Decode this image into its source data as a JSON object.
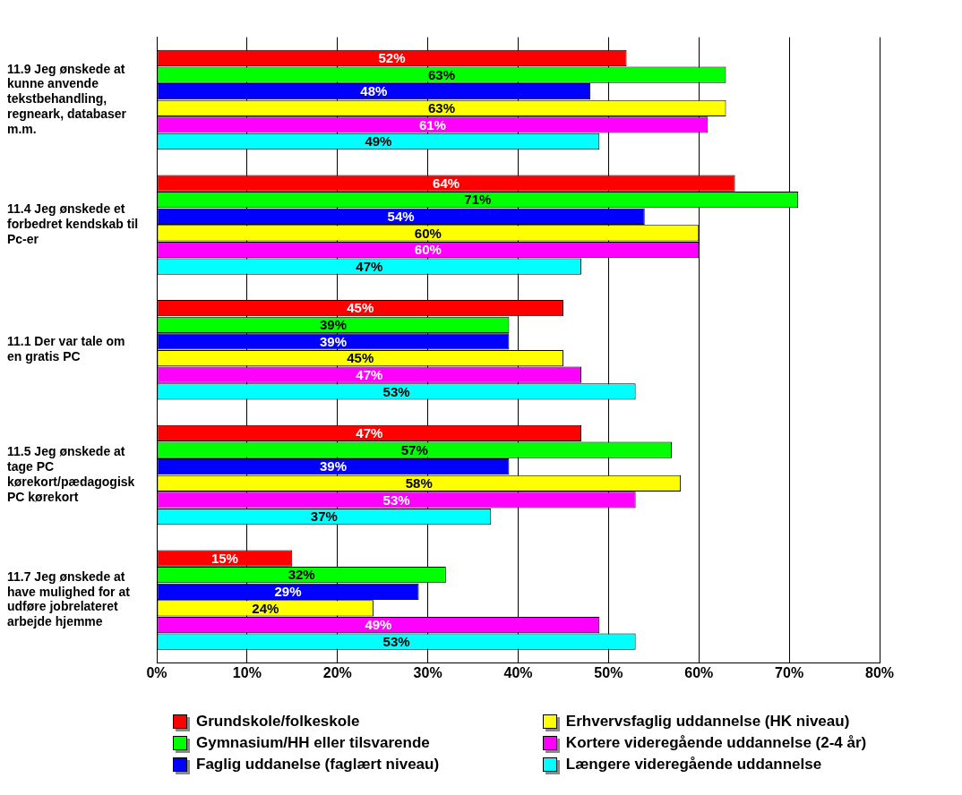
{
  "chart_data": {
    "type": "bar",
    "orientation": "horizontal",
    "categories": [
      "11.9 Jeg ønskede at kunne anvende tekstbehandling, regneark, databaser m.m.",
      "11.4 Jeg ønskede et forbedret kendskab til Pc-er",
      "11.1 Der var tale om en gratis PC",
      "11.5 Jeg ønskede at tage PC kørekort/pædagogisk PC kørekort",
      "11.7 Jeg ønskede at have mulighed for at udføre jobrelateret arbejde hjemme"
    ],
    "series": [
      {
        "name": "Grundskole/folkeskole",
        "color": "#ff0000",
        "values": [
          52,
          64,
          45,
          47,
          15
        ],
        "value_labels": [
          "52%",
          "64%",
          "45%",
          "47%",
          "15%"
        ]
      },
      {
        "name": "Gymnasium/HH eller tilsvarende",
        "color": "#00ff00",
        "values": [
          63,
          71,
          39,
          57,
          32
        ],
        "value_labels": [
          "63%",
          "71%",
          "39%",
          "57%",
          "32%"
        ]
      },
      {
        "name": "Faglig uddanelse (faglært niveau)",
        "color": "#0000ff",
        "values": [
          48,
          54,
          39,
          39,
          29
        ],
        "value_labels": [
          "48%",
          "54%",
          "39%",
          "39%",
          "29%"
        ]
      },
      {
        "name": "Erhvervsfaglig uddannelse (HK niveau)",
        "color": "#ffff00",
        "values": [
          63,
          60,
          45,
          58,
          24
        ],
        "value_labels": [
          "63%",
          "60%",
          "45%",
          "58%",
          "24%"
        ]
      },
      {
        "name": "Kortere videregående uddannelse (2-4 år)",
        "color": "#ff00ff",
        "values": [
          61,
          60,
          47,
          53,
          49
        ],
        "value_labels": [
          "61%",
          "60%",
          "47%",
          "53%",
          "49%"
        ]
      },
      {
        "name": "Længere videregående uddannelse",
        "color": "#00ffff",
        "values": [
          49,
          47,
          53,
          37,
          53
        ],
        "value_labels": [
          "49%",
          "47%",
          "53%",
          "37%",
          "53%"
        ]
      }
    ],
    "xlim": [
      0,
      80
    ],
    "xticks": [
      {
        "value": 0,
        "label": "0%"
      },
      {
        "value": 10,
        "label": "10%"
      },
      {
        "value": 20,
        "label": "20%"
      },
      {
        "value": 30,
        "label": "30%"
      },
      {
        "value": 40,
        "label": "40%"
      },
      {
        "value": 50,
        "label": "50%"
      },
      {
        "value": 60,
        "label": "60%"
      },
      {
        "value": 70,
        "label": "70%"
      },
      {
        "value": 80,
        "label": "80%"
      }
    ],
    "grid": "x",
    "legend": "bottom"
  }
}
